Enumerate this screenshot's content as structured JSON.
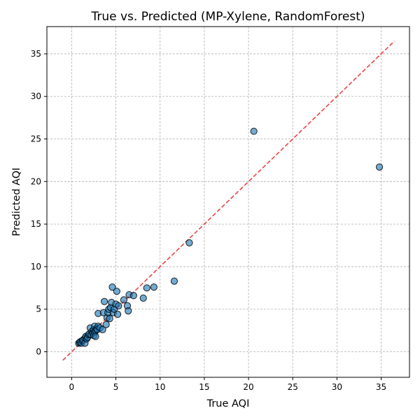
{
  "chart_data": {
    "type": "scatter",
    "title": "True vs. Predicted (MP-Xylene, RandomForest)",
    "xlabel": "True AQI",
    "ylabel": "Predicted AQI",
    "xlim": [
      -2.8,
      38.2
    ],
    "ylim": [
      -3.0,
      38.2
    ],
    "xticks": [
      0,
      5,
      10,
      15,
      20,
      25,
      30,
      35
    ],
    "yticks": [
      0,
      5,
      10,
      15,
      20,
      25,
      30,
      35
    ],
    "grid": true,
    "marker_color": "#1f77b4",
    "reference_line": {
      "style": "dashed",
      "color": "#e8302f",
      "from": [
        -1,
        -1
      ],
      "to": [
        36.5,
        36.5
      ]
    },
    "series": [
      {
        "points": [
          [
            0.8,
            1.0
          ],
          [
            0.9,
            1.1
          ],
          [
            1.0,
            1.2
          ],
          [
            1.1,
            1.0
          ],
          [
            1.2,
            1.3
          ],
          [
            1.3,
            1.4
          ],
          [
            1.5,
            1.6
          ],
          [
            1.5,
            1.0
          ],
          [
            1.6,
            1.8
          ],
          [
            1.7,
            1.5
          ],
          [
            1.8,
            1.7
          ],
          [
            1.9,
            2.0
          ],
          [
            2.0,
            2.1
          ],
          [
            2.1,
            2.8
          ],
          [
            2.2,
            2.0
          ],
          [
            2.3,
            2.4
          ],
          [
            2.4,
            2.2
          ],
          [
            2.5,
            2.6
          ],
          [
            2.5,
            1.9
          ],
          [
            2.6,
            2.3
          ],
          [
            2.6,
            3.0
          ],
          [
            2.7,
            2.5
          ],
          [
            2.7,
            1.8
          ],
          [
            2.8,
            2.7
          ],
          [
            2.9,
            2.6
          ],
          [
            3.0,
            4.5
          ],
          [
            3.0,
            3.0
          ],
          [
            3.2,
            2.8
          ],
          [
            3.5,
            2.6
          ],
          [
            3.6,
            4.6
          ],
          [
            3.7,
            5.9
          ],
          [
            3.9,
            3.2
          ],
          [
            4.0,
            4.0
          ],
          [
            4.1,
            4.6
          ],
          [
            4.2,
            5.0
          ],
          [
            4.3,
            3.9
          ],
          [
            4.4,
            5.2
          ],
          [
            4.5,
            5.8
          ],
          [
            4.6,
            7.6
          ],
          [
            4.7,
            4.6
          ],
          [
            4.8,
            5.0
          ],
          [
            5.0,
            5.6
          ],
          [
            5.1,
            7.1
          ],
          [
            5.2,
            4.4
          ],
          [
            5.3,
            5.4
          ],
          [
            5.9,
            6.1
          ],
          [
            6.3,
            5.4
          ],
          [
            6.4,
            4.8
          ],
          [
            6.5,
            6.7
          ],
          [
            7.0,
            6.6
          ],
          [
            8.1,
            6.3
          ],
          [
            8.5,
            7.5
          ],
          [
            9.3,
            7.6
          ],
          [
            11.6,
            8.3
          ],
          [
            13.3,
            12.8
          ],
          [
            20.6,
            25.9
          ],
          [
            34.8,
            21.7
          ]
        ]
      }
    ]
  }
}
